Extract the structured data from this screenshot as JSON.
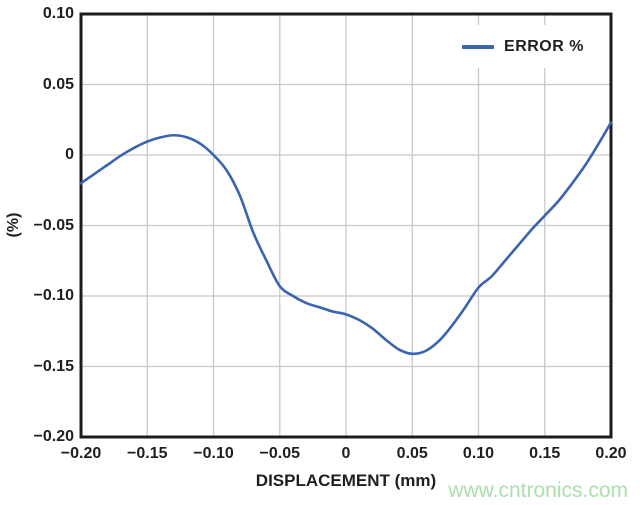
{
  "page": {
    "background": "#ffffff"
  },
  "watermark": {
    "text": "www.cntronics.com",
    "color": "#abdfab"
  },
  "style": {
    "line_color": "#3a63b0",
    "grid_color": "#c6c8cc",
    "frame_color": "#1c1c1c",
    "text_color": "#1f1f1f",
    "legend_background": "#ffffff"
  },
  "chart_data": {
    "type": "line",
    "title": "",
    "xlabel": "DISPLACEMENT (mm)",
    "ylabel": "(%)",
    "xlim": [
      -0.2,
      0.2
    ],
    "ylim": [
      -0.2,
      0.1
    ],
    "grid": true,
    "legend": {
      "position": "top-right-inside",
      "label": "ERROR %"
    },
    "x_tick_values": [
      -0.2,
      -0.15,
      -0.1,
      -0.05,
      0,
      0.05,
      0.1,
      0.15,
      0.2
    ],
    "x_tick_labels": [
      "−0.20",
      "−0.15",
      "−0.10",
      "−0.05",
      "0",
      "0.05",
      "0.10",
      "0.15",
      "0.20"
    ],
    "y_tick_values": [
      0.1,
      0.05,
      0,
      -0.05,
      -0.1,
      -0.15,
      -0.2
    ],
    "y_tick_labels": [
      "0.10",
      "0.05",
      "0",
      "−0.05",
      "−0.10",
      "−0.15",
      "−0.20"
    ],
    "series": [
      {
        "name": "ERROR %",
        "color": "#3a63b0",
        "x": [
          -0.2,
          -0.19,
          -0.18,
          -0.17,
          -0.16,
          -0.15,
          -0.14,
          -0.13,
          -0.12,
          -0.11,
          -0.1,
          -0.09,
          -0.08,
          -0.07,
          -0.06,
          -0.05,
          -0.04,
          -0.03,
          -0.02,
          -0.01,
          0,
          0.01,
          0.02,
          0.03,
          0.04,
          0.05,
          0.06,
          0.07,
          0.08,
          0.09,
          0.1,
          0.11,
          0.12,
          0.13,
          0.14,
          0.15,
          0.16,
          0.17,
          0.18,
          0.19,
          0.2
        ],
        "y": [
          -0.02,
          -0.0135,
          -0.007,
          -0.0005,
          0.005,
          0.0095,
          0.0125,
          0.014,
          0.0125,
          0.008,
          0,
          -0.011,
          -0.029,
          -0.055,
          -0.075,
          -0.093,
          -0.1,
          -0.105,
          -0.108,
          -0.111,
          -0.113,
          -0.117,
          -0.123,
          -0.131,
          -0.138,
          -0.141,
          -0.139,
          -0.132,
          -0.121,
          -0.108,
          -0.094,
          -0.086,
          -0.075,
          -0.064,
          -0.053,
          -0.043,
          -0.033,
          -0.021,
          -0.008,
          0.007,
          0.023
        ]
      }
    ]
  }
}
